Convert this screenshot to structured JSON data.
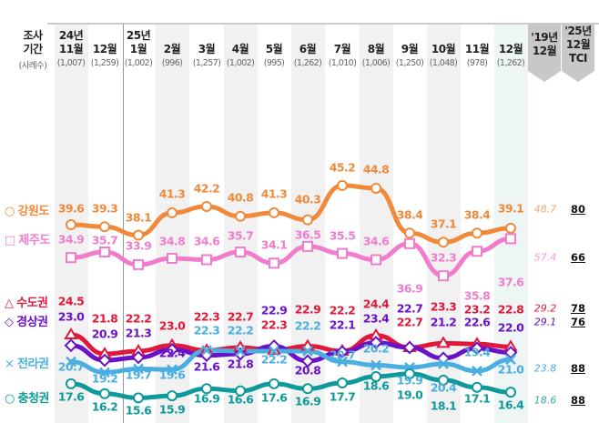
{
  "chart_data": {
    "type": "line",
    "header": {
      "period_label": [
        "조사",
        "기간"
      ],
      "sample_label": "(사례수)",
      "columns": [
        {
          "year": "24년",
          "month": "11월",
          "n": "(1,007)"
        },
        {
          "year": "",
          "month": "12월",
          "n": "(1,259)"
        },
        {
          "year": "25년",
          "month": "1월",
          "n": "(1,002)"
        },
        {
          "year": "",
          "month": "2월",
          "n": "(996)"
        },
        {
          "year": "",
          "month": "3월",
          "n": "(1,257)"
        },
        {
          "year": "",
          "month": "4월",
          "n": "(1,002)"
        },
        {
          "year": "",
          "month": "5월",
          "n": "(995)"
        },
        {
          "year": "",
          "month": "6월",
          "n": "(1,262)"
        },
        {
          "year": "",
          "month": "7월",
          "n": "(1,010)"
        },
        {
          "year": "",
          "month": "8월",
          "n": "(1,006)"
        },
        {
          "year": "",
          "month": "9월",
          "n": "(1,250)"
        },
        {
          "year": "",
          "month": "10월",
          "n": "(1,048)"
        },
        {
          "year": "",
          "month": "11월",
          "n": "(978)"
        },
        {
          "year": "",
          "month": "12월",
          "n": "(1,262)"
        }
      ],
      "ref_col": [
        "'19년",
        "12월"
      ],
      "tci_col": [
        "'25년",
        "12월",
        "TCI"
      ]
    },
    "categories": [
      "24년 11월",
      "12월",
      "25년 1월",
      "2월",
      "3월",
      "4월",
      "5월",
      "6월",
      "7월",
      "8월",
      "9월",
      "10월",
      "11월",
      "12월"
    ],
    "series": [
      {
        "name": "강원도",
        "marker": "circle",
        "color": "#f08a3a",
        "ref_color": "#f5a86a",
        "values": [
          39.6,
          39.3,
          38.1,
          41.3,
          42.2,
          40.8,
          41.3,
          40.3,
          45.2,
          44.8,
          38.4,
          37.1,
          38.4,
          39.1
        ],
        "ref_2019_12": "48.7",
        "tci": "80"
      },
      {
        "name": "제주도",
        "marker": "square",
        "color": "#f27ccc",
        "ref_color": "#f59ad8",
        "values": [
          34.9,
          35.7,
          33.9,
          34.8,
          34.6,
          35.7,
          34.1,
          36.5,
          35.5,
          34.6,
          36.9,
          32.3,
          35.8,
          37.6
        ],
        "ref_2019_12": "57.4",
        "tci": "66"
      },
      {
        "name": "수도권",
        "marker": "triangle",
        "color": "#e0193c",
        "ref_color": "#e0193c",
        "values": [
          24.5,
          21.8,
          22.2,
          23.0,
          22.3,
          22.7,
          22.3,
          22.9,
          22.2,
          24.4,
          22.7,
          23.3,
          23.2,
          22.8
        ],
        "ref_2019_12": "29.2",
        "tci": "78"
      },
      {
        "name": "경상권",
        "marker": "diamond",
        "color": "#6a12c8",
        "ref_color": "#6a12c8",
        "values": [
          23.0,
          20.9,
          21.3,
          22.4,
          21.6,
          21.8,
          22.9,
          20.8,
          22.1,
          23.4,
          22.7,
          21.2,
          22.6,
          22.0
        ],
        "ref_2019_12": "29.1",
        "tci": "76"
      },
      {
        "name": "전라권",
        "marker": "x",
        "color": "#4aafe0",
        "ref_color": "#4aafe0",
        "values": [
          20.7,
          19.2,
          19.7,
          19.6,
          22.3,
          22.2,
          22.2,
          22.2,
          20.7,
          20.2,
          19.9,
          20.4,
          19.4,
          21.0
        ],
        "ref_2019_12": "23.8",
        "tci": "88"
      },
      {
        "name": "충청권",
        "marker": "circle",
        "color": "#0e9a9a",
        "ref_color": "#3aa8a8",
        "values": [
          17.6,
          16.2,
          15.6,
          15.9,
          16.9,
          16.6,
          17.6,
          16.9,
          17.7,
          18.6,
          19.0,
          18.1,
          17.1,
          16.4
        ],
        "ref_2019_12": "18.6",
        "tci": "88"
      }
    ],
    "legend_placement": "left",
    "grid": false
  }
}
